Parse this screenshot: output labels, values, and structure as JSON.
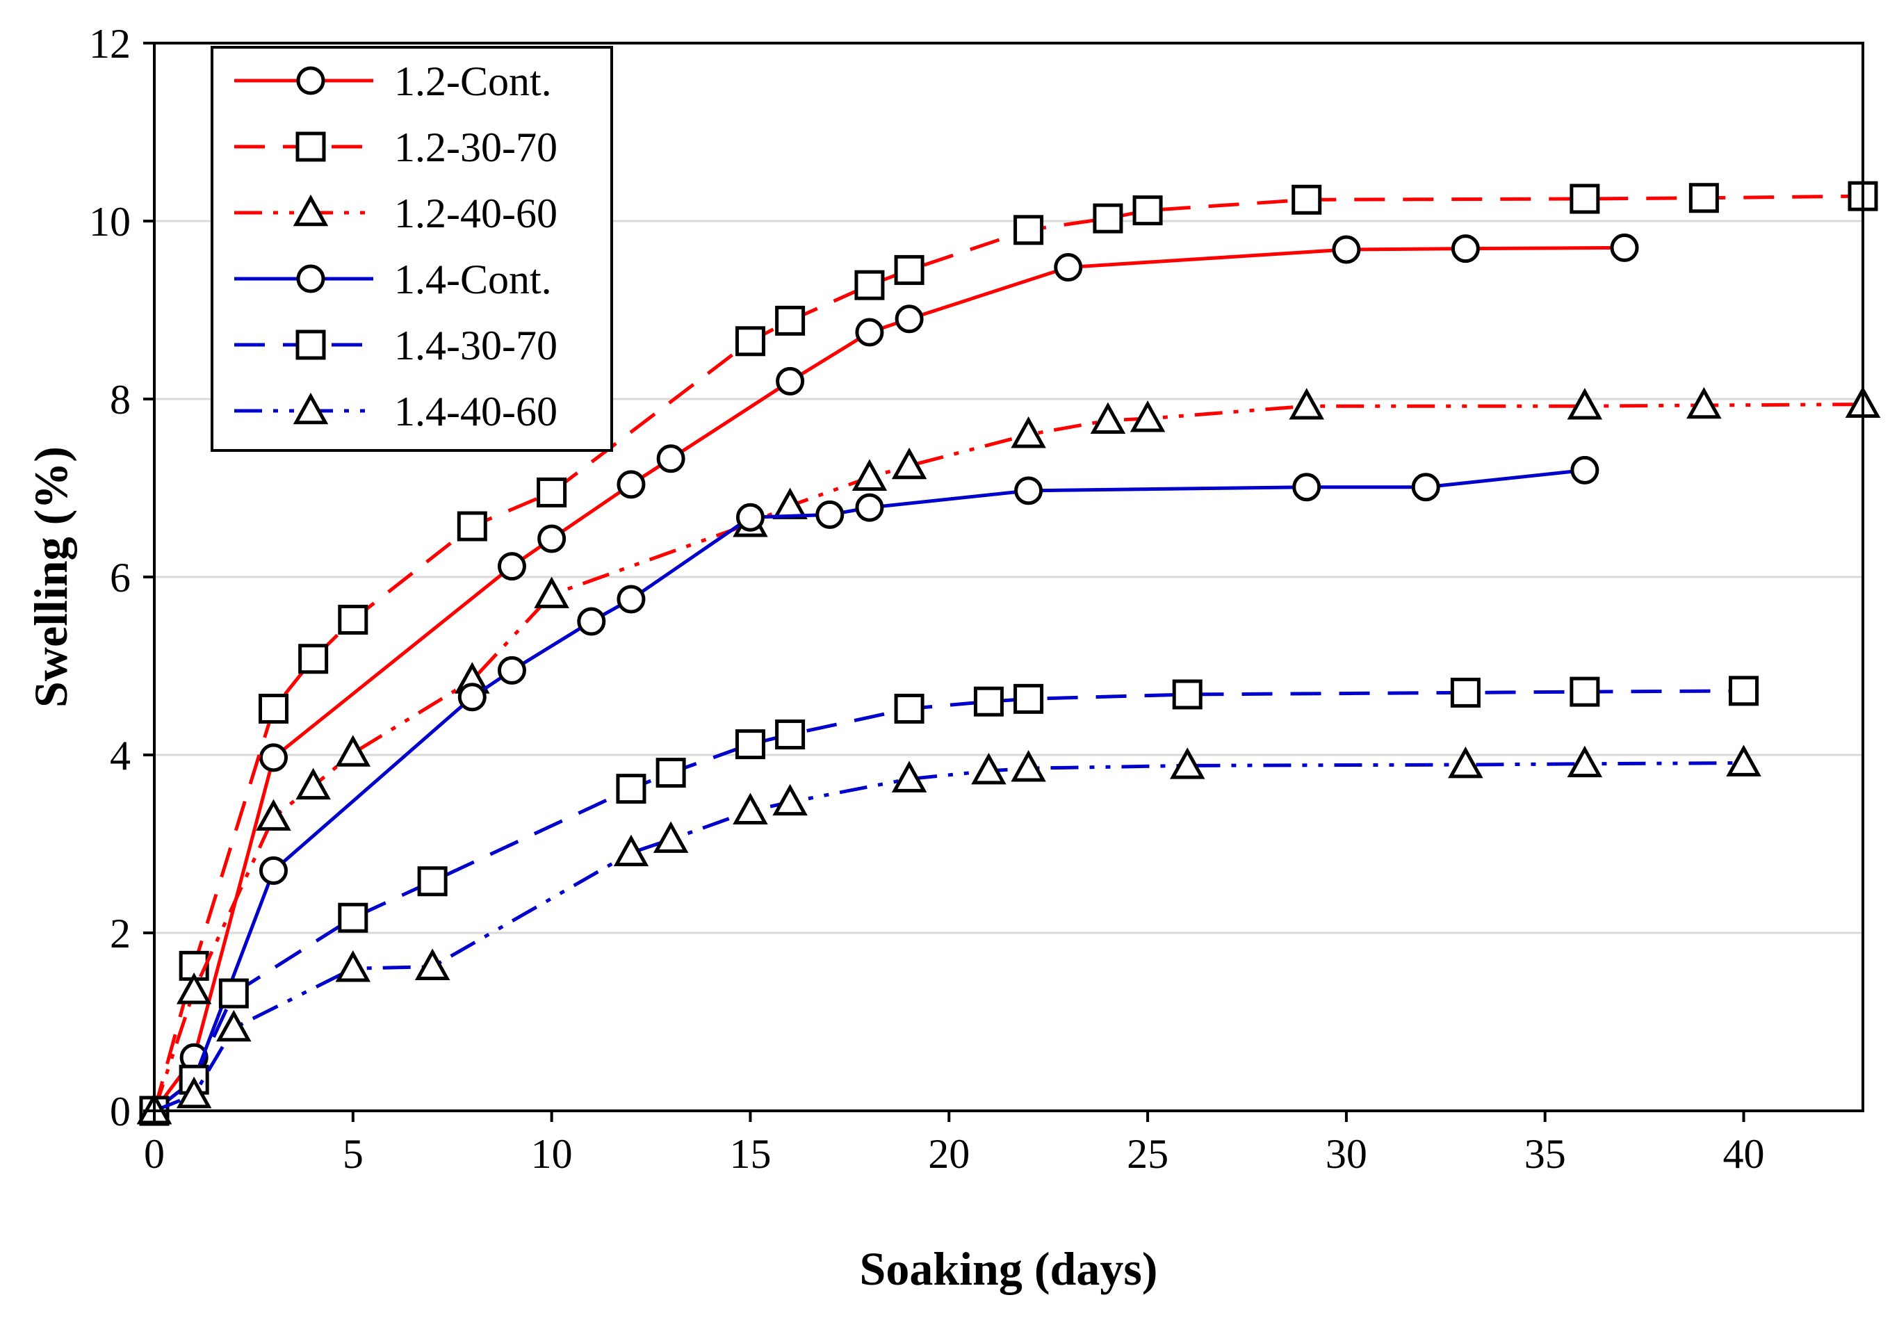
{
  "chart_data": {
    "type": "line",
    "title": "",
    "xlabel": "Soaking (days)",
    "ylabel": "Swelling (%)",
    "xlim": [
      0,
      43
    ],
    "ylim": [
      0,
      12
    ],
    "xticks": [
      0,
      5,
      10,
      15,
      20,
      25,
      30,
      35,
      40
    ],
    "yticks": [
      0,
      2,
      4,
      6,
      8,
      10,
      12
    ],
    "grid": "horizontal",
    "legend_position": "top-left",
    "series": [
      {
        "name": "1.2-Cont.",
        "color": "#ff0000",
        "line_style": "solid",
        "marker": "circle",
        "x": [
          0,
          1,
          3,
          9,
          10,
          12,
          13,
          16,
          18,
          19,
          23,
          30,
          33,
          37
        ],
        "y": [
          0,
          0.6,
          3.97,
          6.12,
          6.43,
          7.04,
          7.33,
          8.2,
          8.75,
          8.9,
          9.48,
          9.68,
          9.69,
          9.7
        ]
      },
      {
        "name": "1.2-30-70",
        "color": "#ff0000",
        "line_style": "dash",
        "marker": "square",
        "x": [
          0,
          1,
          3,
          4,
          5,
          8,
          10,
          15,
          16,
          18,
          19,
          22,
          24,
          25,
          29,
          36,
          39,
          43
        ],
        "y": [
          0,
          1.63,
          4.52,
          5.08,
          5.52,
          6.57,
          6.95,
          8.65,
          8.88,
          9.28,
          9.45,
          9.9,
          10.03,
          10.12,
          10.24,
          10.25,
          10.26,
          10.28
        ]
      },
      {
        "name": "1.2-40-60",
        "color": "#ff0000",
        "line_style": "dashdotdot",
        "marker": "triangle",
        "x": [
          0,
          1,
          3,
          4,
          5,
          8,
          10,
          15,
          16,
          18,
          19,
          22,
          24,
          25,
          29,
          36,
          39,
          43
        ],
        "y": [
          0,
          1.35,
          3.3,
          3.65,
          4.02,
          4.84,
          5.8,
          6.6,
          6.8,
          7.12,
          7.25,
          7.6,
          7.76,
          7.78,
          7.92,
          7.92,
          7.93,
          7.94
        ]
      },
      {
        "name": "1.4-Cont.",
        "color": "#0000cc",
        "line_style": "solid",
        "marker": "circle",
        "x": [
          0,
          1,
          3,
          8,
          9,
          11,
          12,
          15,
          17,
          18,
          22,
          29,
          32,
          36
        ],
        "y": [
          0,
          0.35,
          2.7,
          4.65,
          4.95,
          5.5,
          5.75,
          6.67,
          6.7,
          6.78,
          6.97,
          7.01,
          7.01,
          7.2
        ]
      },
      {
        "name": "1.4-30-70",
        "color": "#0000cc",
        "line_style": "dash",
        "marker": "square",
        "x": [
          0,
          1,
          2,
          5,
          7,
          12,
          13,
          15,
          16,
          19,
          21,
          22,
          26,
          33,
          36,
          40
        ],
        "y": [
          0,
          0.35,
          1.32,
          2.17,
          2.58,
          3.62,
          3.8,
          4.12,
          4.23,
          4.52,
          4.6,
          4.63,
          4.68,
          4.7,
          4.71,
          4.72
        ]
      },
      {
        "name": "1.4-40-60",
        "color": "#0000cc",
        "line_style": "dashdotdot",
        "marker": "triangle",
        "x": [
          0,
          1,
          2,
          5,
          7,
          12,
          13,
          15,
          16,
          19,
          21,
          22,
          26,
          33,
          36,
          40
        ],
        "y": [
          0,
          0.18,
          0.93,
          1.6,
          1.62,
          2.9,
          3.05,
          3.37,
          3.47,
          3.73,
          3.82,
          3.85,
          3.88,
          3.89,
          3.9,
          3.91
        ]
      }
    ]
  }
}
